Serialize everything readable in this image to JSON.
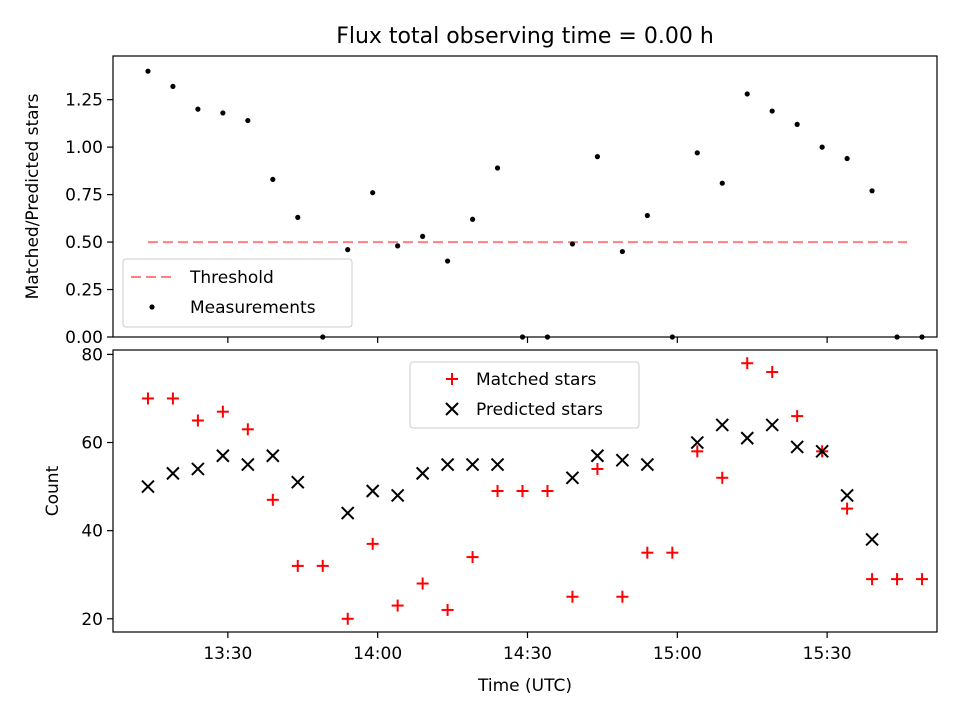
{
  "colors": {
    "threshold": "#ff8080",
    "measurement": "#000000",
    "matched": "#ff0000",
    "predicted": "#000000",
    "axes": "#000000",
    "background": "#ffffff"
  },
  "chart_data": [
    {
      "type": "scatter",
      "title": "Flux total observing time = 0.00 h",
      "xlabel": "",
      "ylabel": "Matched/Predicted stars",
      "xlim": [
        "13:07",
        "15:52"
      ],
      "ylim": [
        0,
        1.48
      ],
      "yticks": [
        0.0,
        0.25,
        0.5,
        0.75,
        1.0,
        1.25
      ],
      "ytick_labels": [
        "0.00",
        "0.25",
        "0.50",
        "0.75",
        "1.00",
        "1.25"
      ],
      "xticks": [
        "13:30",
        "14:00",
        "14:30",
        "15:00",
        "15:30"
      ],
      "grid": false,
      "legend_position": "lower-left",
      "threshold": {
        "name": "Threshold",
        "value": 0.5,
        "x_start": "13:14",
        "x_end": "15:46",
        "style": "dashed"
      },
      "series": [
        {
          "name": "Measurements",
          "marker": "dot",
          "x": [
            "13:14",
            "13:19",
            "13:24",
            "13:29",
            "13:34",
            "13:39",
            "13:44",
            "13:49",
            "13:54",
            "13:59",
            "14:04",
            "14:09",
            "14:14",
            "14:19",
            "14:24",
            "14:29",
            "14:34",
            "14:39",
            "14:44",
            "14:49",
            "14:54",
            "14:59",
            "15:04",
            "15:09",
            "15:14",
            "15:19",
            "15:24",
            "15:29",
            "15:34",
            "15:39",
            "15:44",
            "15:49"
          ],
          "y": [
            1.4,
            1.32,
            1.2,
            1.18,
            1.14,
            0.83,
            0.63,
            0.0,
            0.46,
            0.76,
            0.48,
            0.53,
            0.4,
            0.62,
            0.89,
            0.0,
            0.0,
            0.49,
            0.95,
            0.45,
            0.64,
            0.0,
            0.97,
            0.81,
            1.28,
            1.19,
            1.12,
            1.0,
            0.94,
            0.77,
            0.0,
            0.0
          ]
        }
      ]
    },
    {
      "type": "scatter",
      "title": "",
      "xlabel": "Time (UTC)",
      "ylabel": "Count",
      "xlim": [
        "13:07",
        "15:52"
      ],
      "ylim": [
        17,
        81
      ],
      "yticks": [
        20,
        40,
        60,
        80
      ],
      "ytick_labels": [
        "20",
        "40",
        "60",
        "80"
      ],
      "xticks": [
        "13:30",
        "14:00",
        "14:30",
        "15:00",
        "15:30"
      ],
      "grid": false,
      "legend_position": "upper-center",
      "series": [
        {
          "name": "Matched stars",
          "marker": "plus",
          "x": [
            "13:14",
            "13:19",
            "13:24",
            "13:29",
            "13:34",
            "13:39",
            "13:44",
            "13:49",
            "13:54",
            "13:59",
            "14:04",
            "14:09",
            "14:14",
            "14:19",
            "14:24",
            "14:29",
            "14:34",
            "14:39",
            "14:44",
            "14:49",
            "14:54",
            "14:59",
            "15:04",
            "15:09",
            "15:14",
            "15:19",
            "15:24",
            "15:29",
            "15:34",
            "15:39",
            "15:44",
            "15:49"
          ],
          "y": [
            70,
            70,
            65,
            67,
            63,
            47,
            32,
            32,
            20,
            37,
            23,
            28,
            22,
            34,
            49,
            49,
            49,
            25,
            54,
            25,
            35,
            35,
            58,
            52,
            78,
            76,
            66,
            58,
            45,
            29,
            29,
            29
          ]
        },
        {
          "name": "Predicted stars",
          "marker": "x",
          "x": [
            "13:14",
            "13:19",
            "13:24",
            "13:29",
            "13:34",
            "13:39",
            "13:44",
            "13:54",
            "13:59",
            "14:04",
            "14:09",
            "14:14",
            "14:19",
            "14:24",
            "14:39",
            "14:44",
            "14:49",
            "14:54",
            "15:04",
            "15:09",
            "15:14",
            "15:19",
            "15:24",
            "15:29",
            "15:34",
            "15:39"
          ],
          "y": [
            50,
            53,
            54,
            57,
            55,
            57,
            51,
            44,
            49,
            48,
            53,
            55,
            55,
            55,
            52,
            57,
            56,
            55,
            60,
            64,
            61,
            64,
            59,
            58,
            48,
            38
          ]
        }
      ]
    }
  ]
}
